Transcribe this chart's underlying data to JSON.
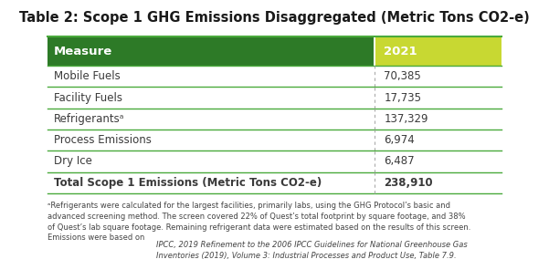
{
  "title": "Table 2: Scope 1 GHG Emissions Disaggregated (Metric Tons CO2-e)",
  "header": [
    "Measure",
    "2021"
  ],
  "rows": [
    [
      "Mobile Fuels",
      "70,385"
    ],
    [
      "Facility Fuels",
      "17,735"
    ],
    [
      "Refrigerantsᵃ",
      "137,329"
    ],
    [
      "Process Emissions",
      "6,974"
    ],
    [
      "Dry Ice",
      "6,487"
    ],
    [
      "Total Scope 1 Emissions (Metric Tons CO2-e)",
      "238,910"
    ]
  ],
  "footnote_normal": "ᵃRefrigerants were calculated for the largest facilities, primarily labs, using the GHG Protocol’s basic and\nadvanced screening method. The screen covered 22% of Quest’s total footprint by square footage, and 38%\nof Quest’s lab square footage. Remaining refrigerant data were estimated based on the results of this screen.\nEmissions were based on ",
  "footnote_italic": "IPCC, 2019 Refinement to the 2006 IPCC Guidelines for National Greenhouse Gas\nInventories (2019), Volume 3: Industrial Processes and Product Use, Table 7.9.",
  "header_bg_left": "#2d7a27",
  "header_bg_right": "#c8d832",
  "header_text_color": "#ffffff",
  "divider_color": "#4aaa3c",
  "border_color": "#4aaa3c",
  "title_color": "#1a1a1a",
  "body_text_color": "#3a3a3a",
  "col_split": 0.72,
  "bg_color": "#ffffff"
}
